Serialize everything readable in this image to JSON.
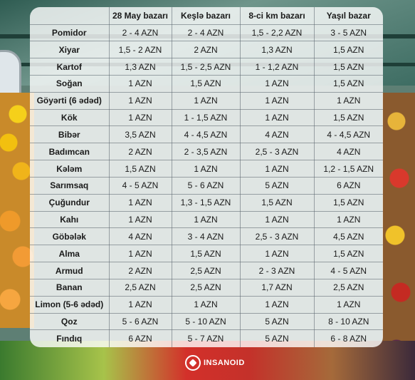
{
  "table": {
    "headers": [
      "",
      "28 May bazarı",
      "Keşlə bazarı",
      "8-ci km bazarı",
      "Yaşıl bazar"
    ],
    "rows": [
      [
        "Pomidor",
        "2 - 4 AZN",
        "2 - 4 AZN",
        "1,5 - 2,2 AZN",
        "3 - 5 AZN"
      ],
      [
        "Xiyar",
        "1,5 - 2 AZN",
        "2 AZN",
        "1,3 AZN",
        "1,5 AZN"
      ],
      [
        "Kartof",
        "1,3 AZN",
        "1,5 - 2,5 AZN",
        "1 - 1,2 AZN",
        "1,5 AZN"
      ],
      [
        "Soğan",
        "1 AZN",
        "1,5 AZN",
        "1 AZN",
        "1,5 AZN"
      ],
      [
        "Göyərti (6 ədəd)",
        "1 AZN",
        "1 AZN",
        "1 AZN",
        "1 AZN"
      ],
      [
        "Kök",
        "1 AZN",
        "1 - 1,5 AZN",
        "1 AZN",
        "1,5 AZN"
      ],
      [
        "Bibər",
        "3,5 AZN",
        "4 - 4,5 AZN",
        "4 AZN",
        "4 - 4,5 AZN"
      ],
      [
        "Badımcan",
        "2 AZN",
        "2 - 3,5 AZN",
        "2,5 - 3 AZN",
        "4 AZN"
      ],
      [
        "Kələm",
        "1,5 AZN",
        "1 AZN",
        "1 AZN",
        "1,2 - 1,5 AZN"
      ],
      [
        "Sarımsaq",
        "4 - 5 AZN",
        "5 - 6 AZN",
        "5 AZN",
        "6 AZN"
      ],
      [
        "Çuğundur",
        "1 AZN",
        "1,3 - 1,5 AZN",
        "1,5 AZN",
        "1,5 AZN"
      ],
      [
        "Kahı",
        "1 AZN",
        "1 AZN",
        "1 AZN",
        "1 AZN"
      ],
      [
        "Göbələk",
        "4 AZN",
        "3 - 4 AZN",
        "2,5 - 3 AZN",
        "4,5 AZN"
      ],
      [
        "Alma",
        "1 AZN",
        "1,5 AZN",
        "1 AZN",
        "1,5 AZN"
      ],
      [
        "Armud",
        "2 AZN",
        "2,5 AZN",
        "2 - 3 AZN",
        "4 - 5 AZN"
      ],
      [
        "Banan",
        "2,5 AZN",
        "2,5 AZN",
        "1,7 AZN",
        "2,5 AZN"
      ],
      [
        "Limon (5-6 ədəd)",
        "1 AZN",
        "1 AZN",
        "1 AZN",
        "1 AZN"
      ],
      [
        "Qoz",
        "5 - 6 AZN",
        "5 - 10 AZN",
        "5 AZN",
        "8 - 10 AZN"
      ],
      [
        "Fındıq",
        "6 AZN",
        "5 - 7 AZN",
        "5 AZN",
        "6 - 8 AZN"
      ]
    ]
  },
  "logo": {
    "text": "INSANOID"
  }
}
